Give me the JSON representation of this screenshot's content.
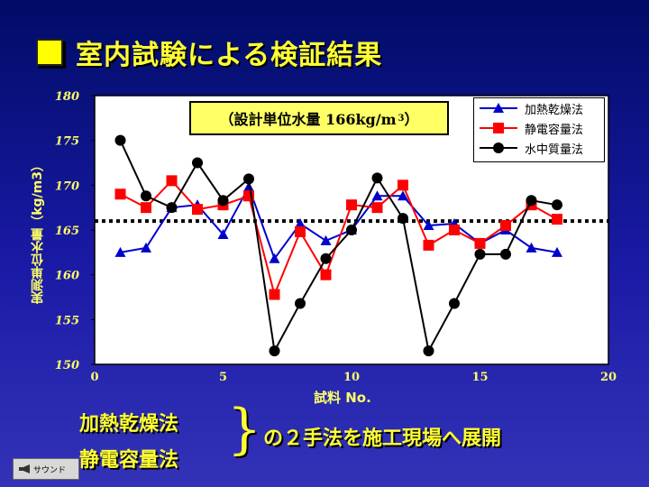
{
  "title": "室内試験による検証結果",
  "annotation": {
    "text": "（設計単位水量 166kg/m",
    "sup": "3",
    "close": "）"
  },
  "ylabel": "実測単位水量（kg/m3）",
  "xlabel": "試料 No.",
  "methods": [
    "加熱乾燥法",
    "静電容量法"
  ],
  "conclusion": "の２手法を施工現場へ展開",
  "brace": "}",
  "sound_button": "サウンド",
  "colors": {
    "heating": "#0000cc",
    "capacitance": "#ff0000",
    "underwater": "#000000",
    "plot_bg": "#ffffff",
    "text_yellow": "#ffff33"
  },
  "chart_data": {
    "type": "line",
    "xlim": [
      0,
      20
    ],
    "ylim": [
      150,
      180
    ],
    "x_ticks": [
      0,
      5,
      10,
      15,
      20
    ],
    "y_ticks": [
      150,
      155,
      160,
      165,
      170,
      175,
      180
    ],
    "reference_line": {
      "value": 166,
      "style": "dotted"
    },
    "legend_position": "top-right",
    "series": [
      {
        "name": "加熱乾燥法",
        "marker": "triangle",
        "color": "#0000cc",
        "x": [
          1,
          2,
          3,
          4,
          5,
          6,
          7,
          8,
          9,
          10,
          11,
          12,
          13,
          14,
          15,
          16,
          17,
          18
        ],
        "y": [
          162.5,
          163,
          167.5,
          167.8,
          164.5,
          169.8,
          161.8,
          165.7,
          163.8,
          165,
          168.8,
          168.8,
          165.5,
          165.7,
          163.5,
          165,
          163,
          162.5
        ]
      },
      {
        "name": "静電容量法",
        "marker": "square",
        "color": "#ff0000",
        "x": [
          1,
          2,
          3,
          4,
          5,
          6,
          7,
          8,
          9,
          10,
          11,
          12,
          13,
          14,
          15,
          16,
          17,
          18
        ],
        "y": [
          169,
          167.5,
          170.5,
          167.3,
          167.8,
          168.8,
          157.8,
          164.8,
          160,
          167.8,
          167.5,
          170,
          163.3,
          165,
          163.5,
          165.5,
          167.8,
          166.2
        ]
      },
      {
        "name": "水中質量法",
        "marker": "circle",
        "color": "#000000",
        "x": [
          1,
          2,
          3,
          4,
          5,
          6,
          7,
          8,
          9,
          10,
          11,
          12,
          13,
          14,
          15,
          16,
          17,
          18
        ],
        "y": [
          175,
          168.8,
          167.5,
          172.5,
          168.3,
          170.7,
          151.5,
          156.8,
          161.8,
          165,
          170.8,
          166.3,
          151.5,
          156.8,
          162.3,
          162.3,
          168.3,
          167.8
        ]
      }
    ]
  }
}
